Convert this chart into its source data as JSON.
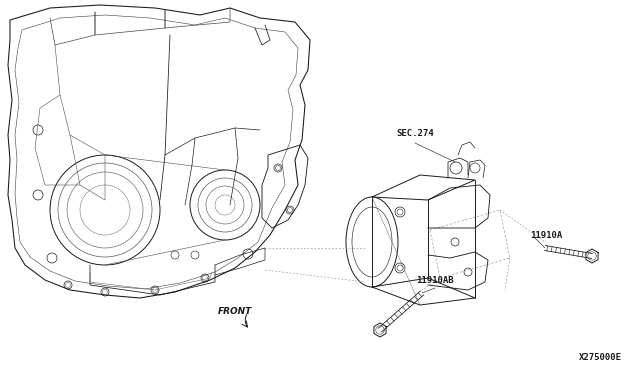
{
  "bg_color": "#ffffff",
  "line_color": "#1a1a1a",
  "lw": 0.7,
  "label_sec274": "SEC.274",
  "label_11910A": "11910A",
  "label_11910AB": "11910AB",
  "label_front": "FRONT",
  "label_part_num": "X275000E",
  "fig_width": 6.4,
  "fig_height": 3.72,
  "dpi": 100
}
